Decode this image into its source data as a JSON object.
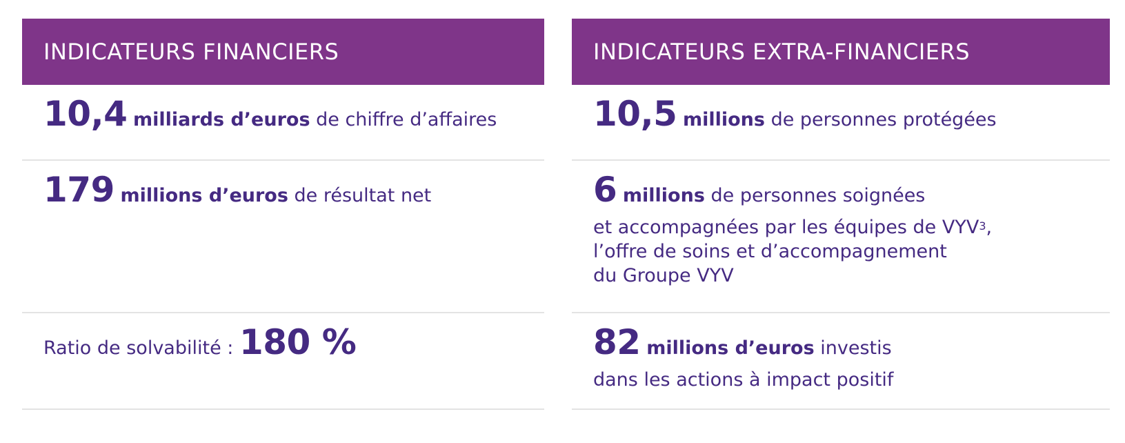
{
  "financial": {
    "header": "INDICATEURS FINANCIERS",
    "revenue": {
      "value": "10,4",
      "unit": "milliards d’euros",
      "text": "de chiffre d’affaires"
    },
    "net_result": {
      "value": "179",
      "unit": "millions d’euros",
      "text": "de résultat net"
    },
    "solvency": {
      "label": "Ratio de solvabilité :",
      "value": "180 %"
    }
  },
  "extra_financial": {
    "header": "INDICATEURS EXTRA-FINANCIERS",
    "protected": {
      "value": "10,5",
      "unit": "millions",
      "text": "de personnes protégées"
    },
    "cared": {
      "value": "6",
      "unit": "millions",
      "text": "de personnes soignées",
      "line2": "et accompagnées par les équipes de VYV",
      "line2_sup": "3",
      "line2_end": ",",
      "line3": "l’offre de soins et d’accompagnement",
      "line4": "du Groupe VYV"
    },
    "invested": {
      "value": "82",
      "unit": "millions d’euros",
      "text": "investis",
      "line2": "dans les actions à impact positif"
    }
  },
  "colors": {
    "header_bg": "#7f3589",
    "text": "#452a82",
    "divider": "#e3e3e3"
  }
}
